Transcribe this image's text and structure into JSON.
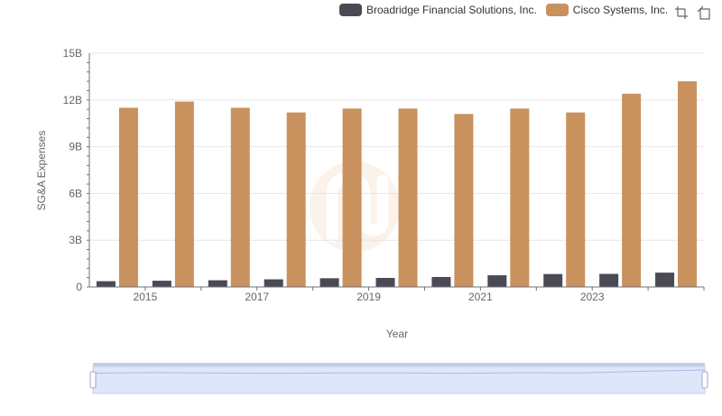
{
  "colors": {
    "broadridge": "#4a4a55",
    "cisco": "#c8915e",
    "grid": "#e6e6e6",
    "axis": "#6e7079",
    "zoom_fill": "#dde6fb",
    "zoom_border": "#c3cfe9"
  },
  "toolbox": {
    "icons": [
      "zoom-icon",
      "zoom-reset-icon"
    ]
  },
  "chart_data": {
    "type": "bar",
    "xlabel": "Year",
    "ylabel": "SG&A Expenses",
    "categories": [
      "2014",
      "2015",
      "2016",
      "2017",
      "2018",
      "2019",
      "2020",
      "2021",
      "2022",
      "2023",
      "2024"
    ],
    "x_tick_labels": [
      "2015",
      "2017",
      "2019",
      "2021",
      "2023"
    ],
    "y_tick_labels": [
      "0",
      "3B",
      "6B",
      "9B",
      "12B",
      "15B"
    ],
    "ylim": [
      0,
      15000000000
    ],
    "grid": true,
    "legend_position": "top-right",
    "series": [
      {
        "name": "Broadridge Financial Solutions, Inc.",
        "values": [
          370000000,
          400000000,
          430000000,
          490000000,
          560000000,
          580000000,
          640000000,
          750000000,
          830000000,
          840000000,
          920000000
        ]
      },
      {
        "name": "Cisco Systems, Inc.",
        "values": [
          11500000000,
          11900000000,
          11500000000,
          11200000000,
          11450000000,
          11450000000,
          11100000000,
          11450000000,
          11200000000,
          12400000000,
          13200000000
        ]
      }
    ]
  }
}
